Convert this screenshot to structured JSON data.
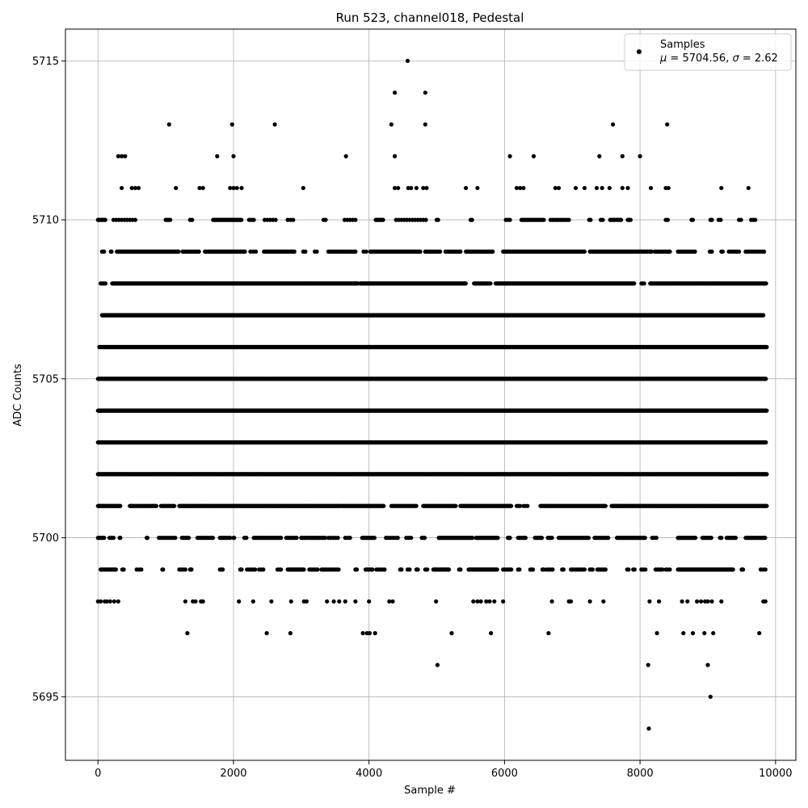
{
  "chart_data": {
    "type": "scatter",
    "title": "Run 523, channel018, Pedestal",
    "xlabel": "Sample #",
    "ylabel": "ADC Counts",
    "xlim": [
      -480,
      10300
    ],
    "ylim": [
      5693,
      5716
    ],
    "xticks": [
      0,
      2000,
      4000,
      6000,
      8000,
      10000
    ],
    "yticks": [
      5695,
      5700,
      5705,
      5710,
      5715
    ],
    "grid": true,
    "legend_position": "top-right",
    "series": [
      {
        "name": "Samples",
        "color": "#000000",
        "marker": "dot",
        "mu": "5704.56",
        "sigma": "2.62",
        "levels": [
          {
            "y": 5715,
            "x": [
              4570
            ]
          },
          {
            "y": 5714,
            "x": [
              4380,
              4830
            ]
          },
          {
            "y": 5713,
            "x": [
              1050,
              1980,
              2610,
              4330,
              4830,
              7600,
              8400
            ]
          },
          {
            "y": 5712,
            "x": [
              300,
              350,
              400,
              1760,
              2000,
              3660,
              4380,
              6080,
              6430,
              7400,
              7740,
              8000
            ]
          },
          {
            "y": 5711,
            "x": [
              350,
              500,
              550,
              600,
              1150,
              1500,
              1550,
              1950,
              2000,
              2050,
              2120,
              3030,
              4380,
              4430,
              4580,
              4620,
              4700,
              4800,
              4850,
              5430,
              5600,
              6180,
              6230,
              6280,
              6750,
              6800,
              7050,
              7180,
              7360,
              7440,
              7550,
              7740,
              7820,
              8160,
              8380,
              8420,
              9200,
              9600
            ]
          },
          {
            "y": 5710,
            "ranges": [
              [
                0,
                120,
                18
              ],
              [
                230,
                570,
                40
              ],
              [
                1000,
                1070,
                22
              ],
              [
                1360,
                1390,
                30
              ],
              [
                1700,
                2120,
                16
              ],
              [
                2230,
                2310,
                35
              ],
              [
                2460,
                2650,
                40
              ],
              [
                2800,
                2880,
                40
              ],
              [
                3330,
                3360,
                30
              ],
              [
                3640,
                3820,
                40
              ],
              [
                4100,
                4220,
                18
              ],
              [
                4400,
                4850,
                40
              ],
              [
                5000,
                5020,
                20
              ],
              [
                5500,
                5520,
                20
              ],
              [
                6020,
                6100,
                30
              ],
              [
                6250,
                6600,
                22
              ],
              [
                6680,
                6960,
                30
              ],
              [
                7250,
                7270,
                20
              ],
              [
                7420,
                7450,
                30
              ],
              [
                7560,
                7720,
                20
              ],
              [
                7820,
                7860,
                20
              ],
              [
                8380,
                8420,
                30
              ],
              [
                8760,
                8780,
                20
              ],
              [
                9040,
                9060,
                20
              ],
              [
                9160,
                9200,
                30
              ],
              [
                9460,
                9500,
                30
              ],
              [
                9640,
                9700,
                30
              ]
            ]
          },
          {
            "y": 5709,
            "ranges": [
              [
                60,
                90,
                30
              ],
              [
                190,
                200,
                10
              ],
              [
                280,
                1200,
                14
              ],
              [
                1250,
                1500,
                20
              ],
              [
                1580,
                2180,
                14
              ],
              [
                2250,
                2330,
                40
              ],
              [
                2450,
                2900,
                16
              ],
              [
                3030,
                3060,
                30
              ],
              [
                3200,
                3230,
                30
              ],
              [
                3400,
                3800,
                25
              ],
              [
                3920,
                3960,
                40
              ],
              [
                4020,
                4760,
                16
              ],
              [
                4830,
                5060,
                22
              ],
              [
                5130,
                5350,
                22
              ],
              [
                5430,
                5840,
                18
              ],
              [
                5980,
                7180,
                16
              ],
              [
                7260,
                8180,
                14
              ],
              [
                8220,
                8440,
                22
              ],
              [
                8560,
                8820,
                25
              ],
              [
                9030,
                9060,
                30
              ],
              [
                9200,
                9220,
                20
              ],
              [
                9310,
                9460,
                30
              ],
              [
                9560,
                9840,
                30
              ]
            ]
          },
          {
            "y": 5708,
            "ranges": [
              [
                40,
                110,
                14
              ],
              [
                210,
                3840,
                9
              ],
              [
                3870,
                5430,
                9
              ],
              [
                5550,
                5800,
                11
              ],
              [
                5870,
                7920,
                9
              ],
              [
                8020,
                8060,
                20
              ],
              [
                8150,
                9860,
                10
              ]
            ]
          },
          {
            "y": 5707,
            "ranges": [
              [
                60,
                9820,
                8
              ]
            ]
          },
          {
            "y": 5706,
            "ranges": [
              [
                20,
                9870,
                7
              ]
            ]
          },
          {
            "y": 5705,
            "ranges": [
              [
                0,
                9860,
                7
              ]
            ]
          },
          {
            "y": 5704,
            "ranges": [
              [
                0,
                9870,
                7
              ]
            ]
          },
          {
            "y": 5703,
            "ranges": [
              [
                0,
                9860,
                7
              ]
            ]
          },
          {
            "y": 5702,
            "ranges": [
              [
                0,
                9870,
                7
              ]
            ]
          },
          {
            "y": 5701,
            "ranges": [
              [
                0,
                330,
                10
              ],
              [
                470,
                870,
                13
              ],
              [
                930,
                1130,
                14
              ],
              [
                1200,
                3580,
                10
              ],
              [
                3600,
                4220,
                11
              ],
              [
                4330,
                4700,
                16
              ],
              [
                4800,
                5280,
                12
              ],
              [
                5350,
                6100,
                11
              ],
              [
                6180,
                6230,
                25
              ],
              [
                6280,
                6350,
                30
              ],
              [
                6530,
                7500,
                12
              ],
              [
                7580,
                9870,
                10
              ]
            ]
          },
          {
            "y": 5700,
            "ranges": [
              [
                0,
                100,
                18
              ],
              [
                170,
                230,
                30
              ],
              [
                320,
                330,
                10
              ],
              [
                720,
                730,
                10
              ],
              [
                900,
                1150,
                30
              ],
              [
                1240,
                1360,
                25
              ],
              [
                1470,
                1700,
                25
              ],
              [
                1800,
                1960,
                25
              ],
              [
                2000,
                2010,
                10
              ],
              [
                2160,
                2190,
                30
              ],
              [
                2300,
                2710,
                20
              ],
              [
                2780,
                2930,
                25
              ],
              [
                3000,
                3360,
                22
              ],
              [
                3400,
                3560,
                35
              ],
              [
                3650,
                3720,
                35
              ],
              [
                3900,
                4080,
                20
              ],
              [
                4250,
                4450,
                35
              ],
              [
                4550,
                4650,
                35
              ],
              [
                4780,
                4820,
                20
              ],
              [
                5030,
                5530,
                16
              ],
              [
                5580,
                5900,
                16
              ],
              [
                6050,
                6080,
                10
              ],
              [
                6200,
                6330,
                22
              ],
              [
                6450,
                6560,
                20
              ],
              [
                6640,
                6700,
                20
              ],
              [
                6800,
                7250,
                22
              ],
              [
                7330,
                7550,
                25
              ],
              [
                7660,
                8090,
                18
              ],
              [
                8180,
                8240,
                30
              ],
              [
                8560,
                8830,
                16
              ],
              [
                8920,
                9070,
                22
              ],
              [
                9180,
                9210,
                20
              ],
              [
                9280,
                9430,
                22
              ],
              [
                9560,
                9850,
                22
              ]
            ]
          },
          {
            "y": 5699,
            "ranges": [
              [
                40,
                270,
                16
              ],
              [
                360,
                380,
                10
              ],
              [
                570,
                640,
                35
              ],
              [
                950,
                960,
                10
              ],
              [
                1200,
                1300,
                30
              ],
              [
                1360,
                1380,
                10
              ],
              [
                1800,
                1840,
                20
              ],
              [
                2100,
                2120,
                10
              ],
              [
                2200,
                2330,
                30
              ],
              [
                2380,
                2440,
                30
              ],
              [
                2650,
                2700,
                25
              ],
              [
                2800,
                3050,
                14
              ],
              [
                3120,
                3250,
                20
              ],
              [
                3300,
                3560,
                25
              ],
              [
                3800,
                3820,
                10
              ],
              [
                3950,
                4050,
                20
              ],
              [
                4110,
                4250,
                30
              ],
              [
                4460,
                4480,
                10
              ],
              [
                4570,
                4600,
                30
              ],
              [
                4700,
                4720,
                10
              ],
              [
                4830,
                4880,
                30
              ],
              [
                4950,
                5180,
                12
              ],
              [
                5330,
                5360,
                20
              ],
              [
                5470,
                5900,
                12
              ],
              [
                5980,
                6100,
                20
              ],
              [
                6200,
                6230,
                20
              ],
              [
                6380,
                6420,
                20
              ],
              [
                6560,
                6580,
                10
              ],
              [
                6620,
                6720,
                30
              ],
              [
                6850,
                6870,
                10
              ],
              [
                6980,
                7180,
                25
              ],
              [
                7260,
                7300,
                20
              ],
              [
                7370,
                7490,
                20
              ],
              [
                7810,
                7840,
                20
              ],
              [
                7900,
                7930,
                20
              ],
              [
                8020,
                8080,
                30
              ],
              [
                8230,
                8340,
                25
              ],
              [
                8380,
                8440,
                30
              ],
              [
                8560,
                9380,
                14
              ],
              [
                9500,
                9520,
                10
              ],
              [
                9780,
                9850,
                35
              ]
            ]
          },
          {
            "x": [
              0,
              40,
              100,
              130,
              180,
              240,
              300,
              1290,
              1400,
              1440,
              1520,
              1550,
              2080,
              2290,
              2560,
              2850,
              3040,
              3080,
              3380,
              3480,
              3560,
              3650,
              3800,
              4000,
              4300,
              4350,
              4990,
              5540,
              5600,
              5650,
              5730,
              5780,
              5850,
              5980,
              6700,
              6950,
              6980,
              7260,
              7460,
              8140,
              8280,
              8620,
              8700,
              8840,
              8900,
              8960,
              9000,
              9060,
              9200,
              9820,
              9850
            ],
            "y": 5698
          },
          {
            "x": [
              1320,
              2490,
              2840,
              3910,
              3970,
              4010,
              4090,
              5220,
              5800,
              6650,
              8250,
              8640,
              8780,
              8950,
              9080,
              9760
            ],
            "y": 5697
          },
          {
            "x": [
              5010,
              8120,
              9000
            ],
            "y": 5696
          },
          {
            "x": [
              9040
            ],
            "y": 5695
          },
          {
            "x": [
              8130
            ],
            "y": 5694
          }
        ]
      }
    ]
  }
}
